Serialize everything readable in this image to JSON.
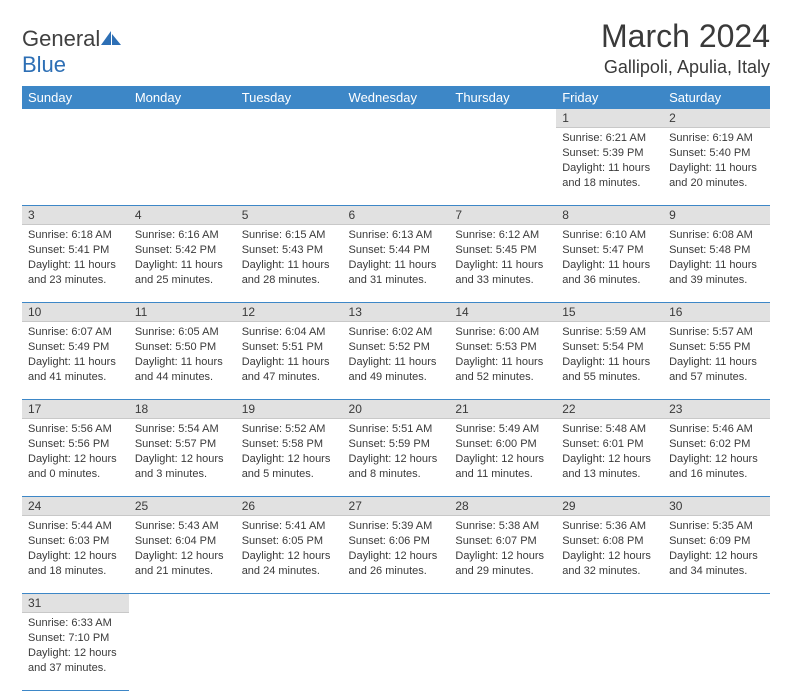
{
  "logo": {
    "text1": "General",
    "text2": "Blue"
  },
  "title": "March 2024",
  "subtitle": "Gallipoli, Apulia, Italy",
  "colors": {
    "header_bg": "#3d87c7",
    "header_text": "#ffffff",
    "daynum_bg": "#e1e1e1",
    "cell_border": "#3d87c7",
    "text": "#3a3a3a",
    "logo_blue": "#2d6fb5"
  },
  "weekdays": [
    "Sunday",
    "Monday",
    "Tuesday",
    "Wednesday",
    "Thursday",
    "Friday",
    "Saturday"
  ],
  "weeks": [
    [
      null,
      null,
      null,
      null,
      null,
      {
        "n": "1",
        "sr": "Sunrise: 6:21 AM",
        "ss": "Sunset: 5:39 PM",
        "d1": "Daylight: 11 hours",
        "d2": "and 18 minutes."
      },
      {
        "n": "2",
        "sr": "Sunrise: 6:19 AM",
        "ss": "Sunset: 5:40 PM",
        "d1": "Daylight: 11 hours",
        "d2": "and 20 minutes."
      }
    ],
    [
      {
        "n": "3",
        "sr": "Sunrise: 6:18 AM",
        "ss": "Sunset: 5:41 PM",
        "d1": "Daylight: 11 hours",
        "d2": "and 23 minutes."
      },
      {
        "n": "4",
        "sr": "Sunrise: 6:16 AM",
        "ss": "Sunset: 5:42 PM",
        "d1": "Daylight: 11 hours",
        "d2": "and 25 minutes."
      },
      {
        "n": "5",
        "sr": "Sunrise: 6:15 AM",
        "ss": "Sunset: 5:43 PM",
        "d1": "Daylight: 11 hours",
        "d2": "and 28 minutes."
      },
      {
        "n": "6",
        "sr": "Sunrise: 6:13 AM",
        "ss": "Sunset: 5:44 PM",
        "d1": "Daylight: 11 hours",
        "d2": "and 31 minutes."
      },
      {
        "n": "7",
        "sr": "Sunrise: 6:12 AM",
        "ss": "Sunset: 5:45 PM",
        "d1": "Daylight: 11 hours",
        "d2": "and 33 minutes."
      },
      {
        "n": "8",
        "sr": "Sunrise: 6:10 AM",
        "ss": "Sunset: 5:47 PM",
        "d1": "Daylight: 11 hours",
        "d2": "and 36 minutes."
      },
      {
        "n": "9",
        "sr": "Sunrise: 6:08 AM",
        "ss": "Sunset: 5:48 PM",
        "d1": "Daylight: 11 hours",
        "d2": "and 39 minutes."
      }
    ],
    [
      {
        "n": "10",
        "sr": "Sunrise: 6:07 AM",
        "ss": "Sunset: 5:49 PM",
        "d1": "Daylight: 11 hours",
        "d2": "and 41 minutes."
      },
      {
        "n": "11",
        "sr": "Sunrise: 6:05 AM",
        "ss": "Sunset: 5:50 PM",
        "d1": "Daylight: 11 hours",
        "d2": "and 44 minutes."
      },
      {
        "n": "12",
        "sr": "Sunrise: 6:04 AM",
        "ss": "Sunset: 5:51 PM",
        "d1": "Daylight: 11 hours",
        "d2": "and 47 minutes."
      },
      {
        "n": "13",
        "sr": "Sunrise: 6:02 AM",
        "ss": "Sunset: 5:52 PM",
        "d1": "Daylight: 11 hours",
        "d2": "and 49 minutes."
      },
      {
        "n": "14",
        "sr": "Sunrise: 6:00 AM",
        "ss": "Sunset: 5:53 PM",
        "d1": "Daylight: 11 hours",
        "d2": "and 52 minutes."
      },
      {
        "n": "15",
        "sr": "Sunrise: 5:59 AM",
        "ss": "Sunset: 5:54 PM",
        "d1": "Daylight: 11 hours",
        "d2": "and 55 minutes."
      },
      {
        "n": "16",
        "sr": "Sunrise: 5:57 AM",
        "ss": "Sunset: 5:55 PM",
        "d1": "Daylight: 11 hours",
        "d2": "and 57 minutes."
      }
    ],
    [
      {
        "n": "17",
        "sr": "Sunrise: 5:56 AM",
        "ss": "Sunset: 5:56 PM",
        "d1": "Daylight: 12 hours",
        "d2": "and 0 minutes."
      },
      {
        "n": "18",
        "sr": "Sunrise: 5:54 AM",
        "ss": "Sunset: 5:57 PM",
        "d1": "Daylight: 12 hours",
        "d2": "and 3 minutes."
      },
      {
        "n": "19",
        "sr": "Sunrise: 5:52 AM",
        "ss": "Sunset: 5:58 PM",
        "d1": "Daylight: 12 hours",
        "d2": "and 5 minutes."
      },
      {
        "n": "20",
        "sr": "Sunrise: 5:51 AM",
        "ss": "Sunset: 5:59 PM",
        "d1": "Daylight: 12 hours",
        "d2": "and 8 minutes."
      },
      {
        "n": "21",
        "sr": "Sunrise: 5:49 AM",
        "ss": "Sunset: 6:00 PM",
        "d1": "Daylight: 12 hours",
        "d2": "and 11 minutes."
      },
      {
        "n": "22",
        "sr": "Sunrise: 5:48 AM",
        "ss": "Sunset: 6:01 PM",
        "d1": "Daylight: 12 hours",
        "d2": "and 13 minutes."
      },
      {
        "n": "23",
        "sr": "Sunrise: 5:46 AM",
        "ss": "Sunset: 6:02 PM",
        "d1": "Daylight: 12 hours",
        "d2": "and 16 minutes."
      }
    ],
    [
      {
        "n": "24",
        "sr": "Sunrise: 5:44 AM",
        "ss": "Sunset: 6:03 PM",
        "d1": "Daylight: 12 hours",
        "d2": "and 18 minutes."
      },
      {
        "n": "25",
        "sr": "Sunrise: 5:43 AM",
        "ss": "Sunset: 6:04 PM",
        "d1": "Daylight: 12 hours",
        "d2": "and 21 minutes."
      },
      {
        "n": "26",
        "sr": "Sunrise: 5:41 AM",
        "ss": "Sunset: 6:05 PM",
        "d1": "Daylight: 12 hours",
        "d2": "and 24 minutes."
      },
      {
        "n": "27",
        "sr": "Sunrise: 5:39 AM",
        "ss": "Sunset: 6:06 PM",
        "d1": "Daylight: 12 hours",
        "d2": "and 26 minutes."
      },
      {
        "n": "28",
        "sr": "Sunrise: 5:38 AM",
        "ss": "Sunset: 6:07 PM",
        "d1": "Daylight: 12 hours",
        "d2": "and 29 minutes."
      },
      {
        "n": "29",
        "sr": "Sunrise: 5:36 AM",
        "ss": "Sunset: 6:08 PM",
        "d1": "Daylight: 12 hours",
        "d2": "and 32 minutes."
      },
      {
        "n": "30",
        "sr": "Sunrise: 5:35 AM",
        "ss": "Sunset: 6:09 PM",
        "d1": "Daylight: 12 hours",
        "d2": "and 34 minutes."
      }
    ],
    [
      {
        "n": "31",
        "sr": "Sunrise: 6:33 AM",
        "ss": "Sunset: 7:10 PM",
        "d1": "Daylight: 12 hours",
        "d2": "and 37 minutes."
      },
      null,
      null,
      null,
      null,
      null,
      null
    ]
  ]
}
